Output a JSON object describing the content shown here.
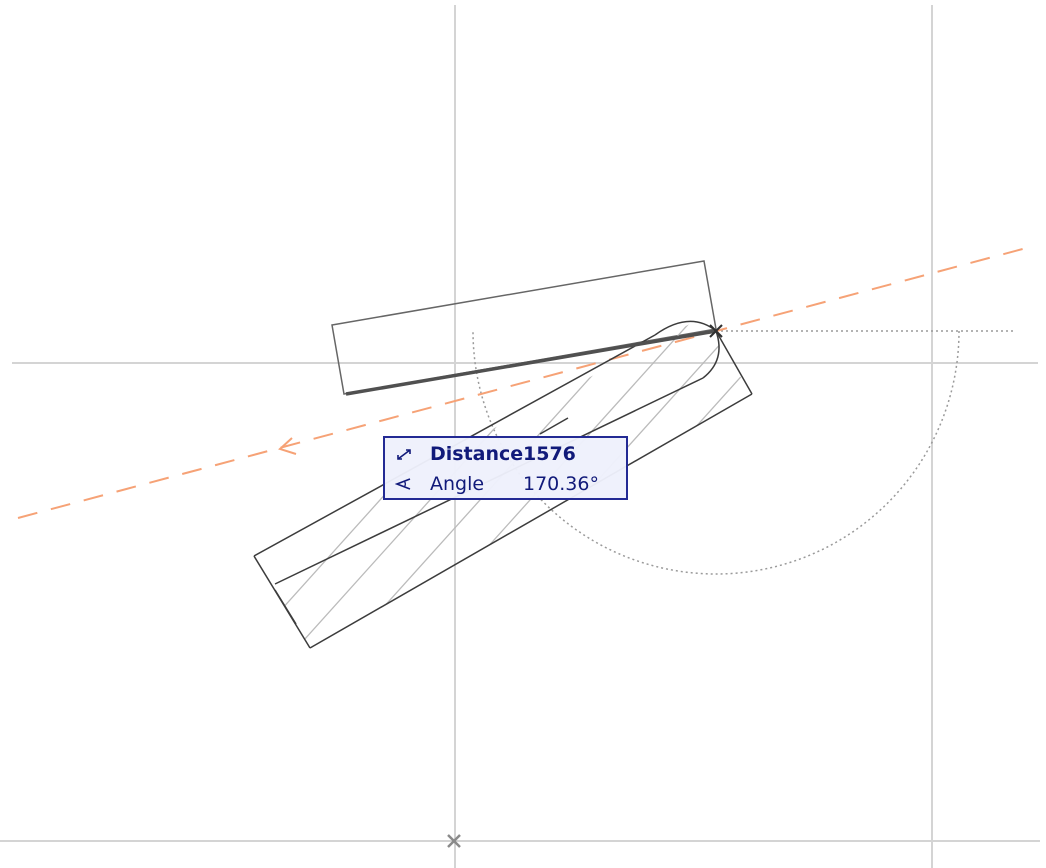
{
  "tracker": {
    "distance_label": "Distance",
    "distance_value": "1576",
    "angle_label": "Angle",
    "angle_value": "170.36°",
    "distance_icon": "diagonal-distance-icon",
    "angle_icon": "angle-icon"
  },
  "colors": {
    "tracker_border": "#232a94",
    "tracker_text": "#111a7a",
    "guide_line": "#f6a276",
    "grid_line": "#d4d4d4",
    "element_stroke": "#555555"
  }
}
